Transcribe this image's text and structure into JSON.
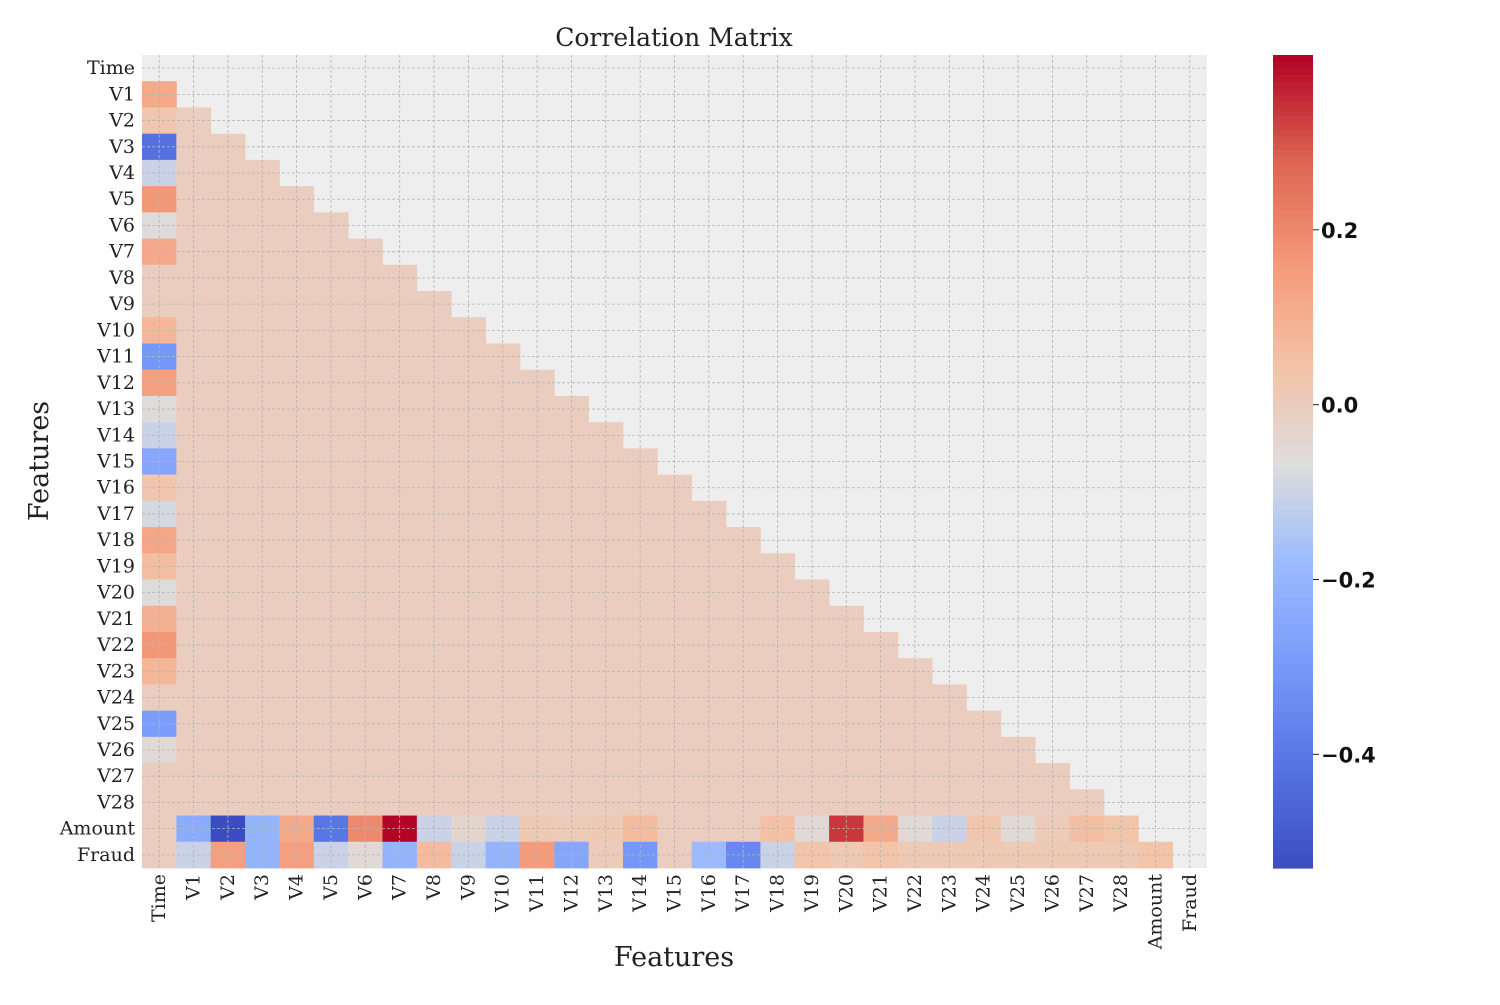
{
  "chart_data": {
    "type": "heatmap",
    "title": "Correlation Matrix",
    "xlabel": "Features",
    "ylabel": "Features",
    "variables": [
      "Time",
      "V1",
      "V2",
      "V3",
      "V4",
      "V5",
      "V6",
      "V7",
      "V8",
      "V9",
      "V10",
      "V11",
      "V12",
      "V13",
      "V14",
      "V15",
      "V16",
      "V17",
      "V18",
      "V19",
      "V20",
      "V21",
      "V22",
      "V23",
      "V24",
      "V25",
      "V26",
      "V27",
      "V28",
      "Amount",
      "Fraud"
    ],
    "mask": "upper-triangle-including-diagonal",
    "lower_triangle_default_value": 0.0,
    "time_column": [
      0.12,
      0.03,
      -0.42,
      -0.1,
      0.17,
      -0.06,
      0.12,
      0.0,
      0.0,
      0.08,
      -0.3,
      0.15,
      -0.06,
      -0.1,
      -0.25,
      0.03,
      -0.08,
      0.13,
      0.06,
      -0.06,
      0.1,
      0.17,
      0.08,
      0.0,
      -0.28,
      -0.05,
      0.0,
      0.0
    ],
    "amount_row": [
      0.0,
      -0.23,
      -0.53,
      -0.2,
      0.12,
      -0.4,
      0.2,
      0.4,
      -0.1,
      -0.03,
      -0.1,
      0.02,
      0.01,
      0.02,
      0.07,
      0.0,
      0.0,
      0.0,
      0.05,
      -0.05,
      0.34,
      0.12,
      -0.05,
      -0.1,
      0.03,
      -0.05,
      0.01,
      0.06,
      0.04
    ],
    "fraud_row": [
      0.0,
      -0.1,
      0.15,
      -0.2,
      0.15,
      -0.1,
      -0.05,
      -0.2,
      0.07,
      -0.1,
      -0.2,
      0.16,
      -0.25,
      0.01,
      -0.3,
      0.0,
      -0.18,
      -0.35,
      -0.1,
      0.04,
      0.02,
      0.04,
      0.02,
      0.02,
      0.02,
      0.02,
      0.02,
      0.02,
      0.02,
      0.04
    ],
    "colorbar": {
      "colormap": "coolwarm",
      "vmin": -0.53,
      "vmax": 0.4,
      "ticks": [
        -0.4,
        -0.2,
        0.0,
        0.2
      ],
      "tick_labels": [
        "−0.4",
        "−0.2",
        "0.0",
        "0.2"
      ]
    },
    "grid": true,
    "legend": "colorbar-right"
  }
}
